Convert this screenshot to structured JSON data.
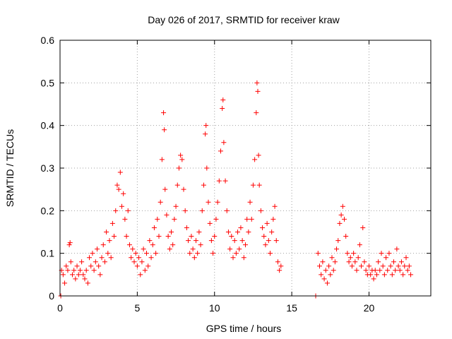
{
  "chart_data": {
    "type": "scatter",
    "title": "Day 026 of 2017, SRMTID for receiver kraw",
    "xlabel": "GPS time / hours",
    "ylabel": "SRMTID / TECUs",
    "xlim": [
      0,
      24
    ],
    "ylim": [
      0,
      0.6
    ],
    "xticks": [
      0,
      5,
      10,
      15,
      20
    ],
    "yticks": [
      0,
      0.1,
      0.2,
      0.3,
      0.4,
      0.5,
      0.6
    ],
    "xtick_labels": [
      "0",
      "5",
      "10",
      "15",
      "20"
    ],
    "ytick_labels": [
      "0",
      "0.1",
      "0.2",
      "0.3",
      "0.4",
      "0.5",
      "0.6"
    ],
    "grid": true,
    "marker": "+",
    "color": "#ff0000",
    "series": [
      {
        "name": "SRMTID",
        "points": [
          [
            0.05,
            0.0
          ],
          [
            0.1,
            0.06
          ],
          [
            0.2,
            0.05
          ],
          [
            0.3,
            0.03
          ],
          [
            0.4,
            0.07
          ],
          [
            0.5,
            0.06
          ],
          [
            0.6,
            0.12
          ],
          [
            0.65,
            0.125
          ],
          [
            0.7,
            0.08
          ],
          [
            0.8,
            0.05
          ],
          [
            0.9,
            0.06
          ],
          [
            1.0,
            0.04
          ],
          [
            1.1,
            0.07
          ],
          [
            1.2,
            0.05
          ],
          [
            1.3,
            0.06
          ],
          [
            1.4,
            0.08
          ],
          [
            1.5,
            0.05
          ],
          [
            1.6,
            0.04
          ],
          [
            1.7,
            0.06
          ],
          [
            1.8,
            0.03
          ],
          [
            1.9,
            0.09
          ],
          [
            2.0,
            0.07
          ],
          [
            2.1,
            0.1
          ],
          [
            2.2,
            0.06
          ],
          [
            2.3,
            0.08
          ],
          [
            2.4,
            0.11
          ],
          [
            2.5,
            0.07
          ],
          [
            2.6,
            0.05
          ],
          [
            2.7,
            0.09
          ],
          [
            2.8,
            0.12
          ],
          [
            2.9,
            0.08
          ],
          [
            3.0,
            0.15
          ],
          [
            3.1,
            0.1
          ],
          [
            3.2,
            0.13
          ],
          [
            3.3,
            0.09
          ],
          [
            3.4,
            0.17
          ],
          [
            3.5,
            0.14
          ],
          [
            3.6,
            0.2
          ],
          [
            3.7,
            0.26
          ],
          [
            3.8,
            0.25
          ],
          [
            3.9,
            0.29
          ],
          [
            4.0,
            0.21
          ],
          [
            4.1,
            0.24
          ],
          [
            4.2,
            0.18
          ],
          [
            4.3,
            0.14
          ],
          [
            4.4,
            0.2
          ],
          [
            4.5,
            0.12
          ],
          [
            4.6,
            0.09
          ],
          [
            4.7,
            0.11
          ],
          [
            4.8,
            0.08
          ],
          [
            4.9,
            0.1
          ],
          [
            5.0,
            0.07
          ],
          [
            5.1,
            0.09
          ],
          [
            5.2,
            0.05
          ],
          [
            5.3,
            0.08
          ],
          [
            5.4,
            0.11
          ],
          [
            5.5,
            0.06
          ],
          [
            5.6,
            0.1
          ],
          [
            5.7,
            0.07
          ],
          [
            5.8,
            0.13
          ],
          [
            5.9,
            0.09
          ],
          [
            6.0,
            0.12
          ],
          [
            6.1,
            0.16
          ],
          [
            6.2,
            0.1
          ],
          [
            6.3,
            0.18
          ],
          [
            6.4,
            0.14
          ],
          [
            6.5,
            0.22
          ],
          [
            6.6,
            0.32
          ],
          [
            6.7,
            0.43
          ],
          [
            6.75,
            0.39
          ],
          [
            6.8,
            0.25
          ],
          [
            6.9,
            0.19
          ],
          [
            7.0,
            0.14
          ],
          [
            7.1,
            0.11
          ],
          [
            7.2,
            0.15
          ],
          [
            7.3,
            0.12
          ],
          [
            7.4,
            0.18
          ],
          [
            7.5,
            0.21
          ],
          [
            7.6,
            0.26
          ],
          [
            7.7,
            0.3
          ],
          [
            7.8,
            0.33
          ],
          [
            7.9,
            0.32
          ],
          [
            8.0,
            0.25
          ],
          [
            8.1,
            0.2
          ],
          [
            8.2,
            0.16
          ],
          [
            8.3,
            0.13
          ],
          [
            8.4,
            0.1
          ],
          [
            8.5,
            0.14
          ],
          [
            8.6,
            0.11
          ],
          [
            8.7,
            0.09
          ],
          [
            8.8,
            0.13
          ],
          [
            8.9,
            0.1
          ],
          [
            9.0,
            0.15
          ],
          [
            9.1,
            0.12
          ],
          [
            9.2,
            0.2
          ],
          [
            9.3,
            0.26
          ],
          [
            9.4,
            0.38
          ],
          [
            9.45,
            0.4
          ],
          [
            9.5,
            0.3
          ],
          [
            9.6,
            0.22
          ],
          [
            9.7,
            0.17
          ],
          [
            9.8,
            0.13
          ],
          [
            9.9,
            0.1
          ],
          [
            10.0,
            0.14
          ],
          [
            10.1,
            0.18
          ],
          [
            10.2,
            0.22
          ],
          [
            10.3,
            0.27
          ],
          [
            10.4,
            0.34
          ],
          [
            10.5,
            0.44
          ],
          [
            10.55,
            0.46
          ],
          [
            10.6,
            0.36
          ],
          [
            10.7,
            0.27
          ],
          [
            10.8,
            0.2
          ],
          [
            10.9,
            0.15
          ],
          [
            11.0,
            0.11
          ],
          [
            11.1,
            0.14
          ],
          [
            11.2,
            0.09
          ],
          [
            11.3,
            0.13
          ],
          [
            11.4,
            0.1
          ],
          [
            11.5,
            0.15
          ],
          [
            11.6,
            0.11
          ],
          [
            11.7,
            0.16
          ],
          [
            11.8,
            0.13
          ],
          [
            11.9,
            0.09
          ],
          [
            12.0,
            0.12
          ],
          [
            12.1,
            0.18
          ],
          [
            12.2,
            0.15
          ],
          [
            12.3,
            0.22
          ],
          [
            12.4,
            0.18
          ],
          [
            12.5,
            0.26
          ],
          [
            12.6,
            0.32
          ],
          [
            12.7,
            0.43
          ],
          [
            12.75,
            0.5
          ],
          [
            12.8,
            0.48
          ],
          [
            12.85,
            0.33
          ],
          [
            12.9,
            0.26
          ],
          [
            13.0,
            0.2
          ],
          [
            13.1,
            0.16
          ],
          [
            13.2,
            0.14
          ],
          [
            13.3,
            0.12
          ],
          [
            13.4,
            0.17
          ],
          [
            13.5,
            0.13
          ],
          [
            13.6,
            0.1
          ],
          [
            13.7,
            0.15
          ],
          [
            13.8,
            0.18
          ],
          [
            13.9,
            0.21
          ],
          [
            14.0,
            0.13
          ],
          [
            14.1,
            0.08
          ],
          [
            14.2,
            0.06
          ],
          [
            14.3,
            0.07
          ],
          [
            16.55,
            0.0
          ],
          [
            16.7,
            0.1
          ],
          [
            16.8,
            0.07
          ],
          [
            16.9,
            0.05
          ],
          [
            17.0,
            0.08
          ],
          [
            17.1,
            0.04
          ],
          [
            17.2,
            0.06
          ],
          [
            17.3,
            0.03
          ],
          [
            17.4,
            0.07
          ],
          [
            17.5,
            0.05
          ],
          [
            17.6,
            0.09
          ],
          [
            17.7,
            0.06
          ],
          [
            17.8,
            0.08
          ],
          [
            17.9,
            0.11
          ],
          [
            18.0,
            0.13
          ],
          [
            18.1,
            0.17
          ],
          [
            18.2,
            0.19
          ],
          [
            18.3,
            0.21
          ],
          [
            18.4,
            0.18
          ],
          [
            18.5,
            0.14
          ],
          [
            18.6,
            0.1
          ],
          [
            18.7,
            0.08
          ],
          [
            18.8,
            0.09
          ],
          [
            18.9,
            0.07
          ],
          [
            19.0,
            0.1
          ],
          [
            19.1,
            0.08
          ],
          [
            19.2,
            0.06
          ],
          [
            19.3,
            0.09
          ],
          [
            19.4,
            0.12
          ],
          [
            19.5,
            0.07
          ],
          [
            19.6,
            0.16
          ],
          [
            19.7,
            0.08
          ],
          [
            19.8,
            0.06
          ],
          [
            19.9,
            0.05
          ],
          [
            20.0,
            0.07
          ],
          [
            20.1,
            0.05
          ],
          [
            20.2,
            0.06
          ],
          [
            20.3,
            0.04
          ],
          [
            20.4,
            0.06
          ],
          [
            20.5,
            0.05
          ],
          [
            20.6,
            0.08
          ],
          [
            20.7,
            0.06
          ],
          [
            20.8,
            0.1
          ],
          [
            20.9,
            0.07
          ],
          [
            21.0,
            0.05
          ],
          [
            21.1,
            0.09
          ],
          [
            21.2,
            0.06
          ],
          [
            21.3,
            0.1
          ],
          [
            21.4,
            0.07
          ],
          [
            21.5,
            0.05
          ],
          [
            21.6,
            0.08
          ],
          [
            21.7,
            0.06
          ],
          [
            21.8,
            0.11
          ],
          [
            21.9,
            0.07
          ],
          [
            22.0,
            0.06
          ],
          [
            22.1,
            0.08
          ],
          [
            22.2,
            0.05
          ],
          [
            22.3,
            0.07
          ],
          [
            22.4,
            0.09
          ],
          [
            22.5,
            0.06
          ],
          [
            22.6,
            0.07
          ],
          [
            22.7,
            0.05
          ]
        ]
      }
    ]
  }
}
